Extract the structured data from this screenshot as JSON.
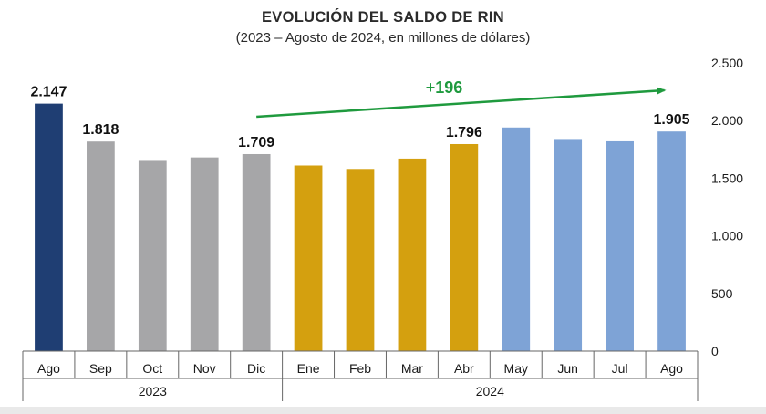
{
  "chart_data": {
    "type": "bar",
    "title": "EVOLUCIÓN DEL SALDO DE RIN",
    "subtitle": "(2023 – Agosto de 2024, en millones de dólares)",
    "categories": [
      "Ago",
      "Sep",
      "Oct",
      "Nov",
      "Dic",
      "Ene",
      "Feb",
      "Mar",
      "Abr",
      "May",
      "Jun",
      "Jul",
      "Ago"
    ],
    "groups": [
      {
        "label": "2023",
        "start": 0,
        "end": 4
      },
      {
        "label": "2024",
        "start": 5,
        "end": 12
      }
    ],
    "values": [
      2147,
      1818,
      1650,
      1680,
      1709,
      1610,
      1580,
      1670,
      1796,
      1940,
      1840,
      1820,
      1905
    ],
    "bar_colors": [
      "#1f3e73",
      "#a6a6a8",
      "#a6a6a8",
      "#a6a6a8",
      "#a6a6a8",
      "#d4a00f",
      "#d4a00f",
      "#d4a00f",
      "#d4a00f",
      "#7ea3d6",
      "#7ea3d6",
      "#7ea3d6",
      "#7ea3d6"
    ],
    "data_labels": [
      {
        "index": 0,
        "text": "2.147"
      },
      {
        "index": 1,
        "text": "1.818"
      },
      {
        "index": 4,
        "text": "1.709"
      },
      {
        "index": 8,
        "text": "1.796"
      },
      {
        "index": 12,
        "text": "1.905"
      }
    ],
    "ylim": [
      0,
      2500
    ],
    "yticks": [
      0,
      500,
      1000,
      1500,
      2000,
      2500
    ],
    "ytick_labels": [
      "0",
      "500",
      "1.000",
      "1.500",
      "2.000",
      "2.500"
    ],
    "y_axis_side": "right",
    "grid": false,
    "annotation": {
      "text": "+196",
      "from_index": 4,
      "to_index": 12,
      "color": "#1f9a3e"
    }
  }
}
